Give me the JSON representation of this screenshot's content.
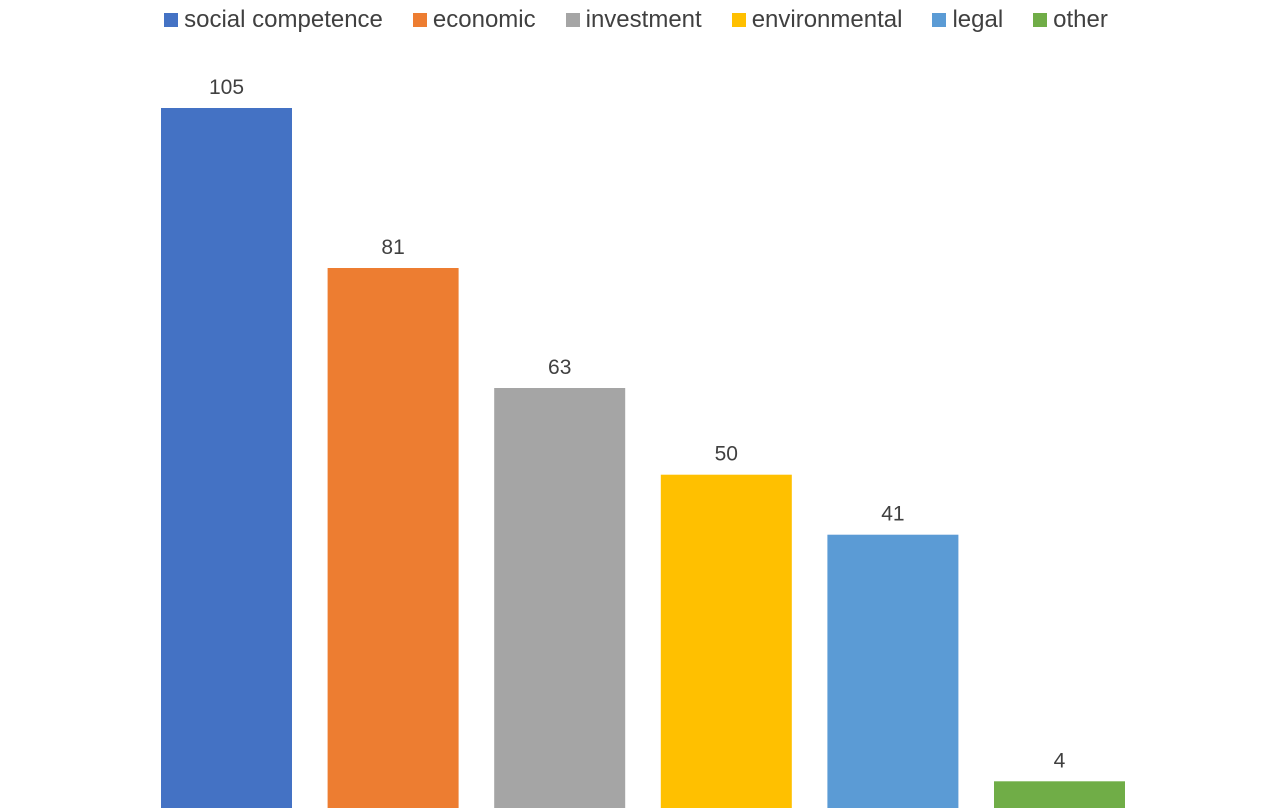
{
  "chart_data": {
    "type": "bar",
    "title": "",
    "xlabel": "",
    "ylabel": "",
    "categories": [
      "social competence",
      "economic",
      "investment",
      "environmental",
      "legal",
      "other"
    ],
    "values": [
      105,
      81,
      63,
      50,
      41,
      4
    ],
    "colors": [
      "#4472C4",
      "#ED7D31",
      "#A5A5A5",
      "#FFC000",
      "#5B9BD5",
      "#70AD47"
    ],
    "ylim": [
      0,
      110
    ],
    "grid": false,
    "data_labels": true,
    "legend": {
      "position": "top",
      "entries": [
        "social competence",
        "economic",
        "investment",
        "environmental",
        "legal",
        "other"
      ]
    }
  }
}
